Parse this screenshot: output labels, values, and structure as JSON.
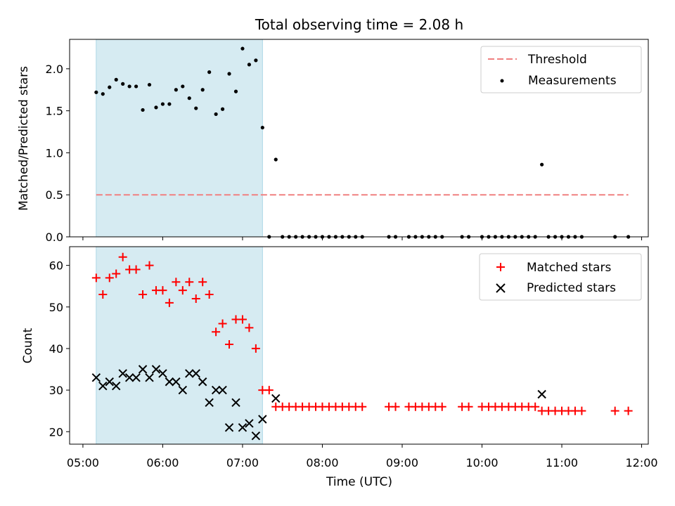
{
  "chart_data": {
    "title": "Total observing time = 2.08 h",
    "type": "scatter",
    "x_axis": {
      "label": "Time (UTC)",
      "range": [
        "04:50",
        "12:05"
      ],
      "ticks": [
        "05:00",
        "06:00",
        "07:00",
        "08:00",
        "09:00",
        "10:00",
        "11:00",
        "12:00"
      ]
    },
    "shaded_interval": {
      "start": "05:10",
      "end": "07:15",
      "color": "#add8e6"
    },
    "panels": [
      {
        "ylabel": "Matched/Predicted stars",
        "ylim": [
          0,
          2.35
        ],
        "yticks": [
          "0.0",
          "0.5",
          "1.0",
          "1.5",
          "2.0"
        ],
        "legend_position": "top-right",
        "threshold": {
          "name": "Threshold",
          "value": 0.5,
          "x_start": "05:10",
          "x_end": "11:50",
          "color": "#f08080"
        },
        "series": [
          {
            "name": "Measurements",
            "color": "#000000",
            "marker": "dot",
            "points": [
              [
                "05:10",
                1.72
              ],
              [
                "05:15",
                1.7
              ],
              [
                "05:20",
                1.78
              ],
              [
                "05:25",
                1.87
              ],
              [
                "05:30",
                1.82
              ],
              [
                "05:35",
                1.79
              ],
              [
                "05:40",
                1.79
              ],
              [
                "05:45",
                1.51
              ],
              [
                "05:50",
                1.81
              ],
              [
                "05:55",
                1.54
              ],
              [
                "06:00",
                1.58
              ],
              [
                "06:05",
                1.58
              ],
              [
                "06:10",
                1.75
              ],
              [
                "06:15",
                1.79
              ],
              [
                "06:20",
                1.65
              ],
              [
                "06:25",
                1.53
              ],
              [
                "06:30",
                1.75
              ],
              [
                "06:35",
                1.96
              ],
              [
                "06:40",
                1.46
              ],
              [
                "06:45",
                1.52
              ],
              [
                "06:50",
                1.94
              ],
              [
                "06:55",
                1.73
              ],
              [
                "07:00",
                2.24
              ],
              [
                "07:05",
                2.05
              ],
              [
                "07:10",
                2.1
              ],
              [
                "07:15",
                1.3
              ],
              [
                "07:20",
                0.0
              ],
              [
                "07:25",
                0.92
              ],
              [
                "07:30",
                0.0
              ],
              [
                "07:35",
                0.0
              ],
              [
                "07:40",
                0.0
              ],
              [
                "07:45",
                0.0
              ],
              [
                "07:50",
                0.0
              ],
              [
                "07:55",
                0.0
              ],
              [
                "08:00",
                0.0
              ],
              [
                "08:05",
                0.0
              ],
              [
                "08:10",
                0.0
              ],
              [
                "08:15",
                0.0
              ],
              [
                "08:20",
                0.0
              ],
              [
                "08:25",
                0.0
              ],
              [
                "08:30",
                0.0
              ],
              [
                "08:50",
                0.0
              ],
              [
                "08:55",
                0.0
              ],
              [
                "09:05",
                0.0
              ],
              [
                "09:10",
                0.0
              ],
              [
                "09:15",
                0.0
              ],
              [
                "09:20",
                0.0
              ],
              [
                "09:25",
                0.0
              ],
              [
                "09:30",
                0.0
              ],
              [
                "09:45",
                0.0
              ],
              [
                "09:50",
                0.0
              ],
              [
                "10:00",
                0.0
              ],
              [
                "10:05",
                0.0
              ],
              [
                "10:10",
                0.0
              ],
              [
                "10:15",
                0.0
              ],
              [
                "10:20",
                0.0
              ],
              [
                "10:25",
                0.0
              ],
              [
                "10:30",
                0.0
              ],
              [
                "10:35",
                0.0
              ],
              [
                "10:40",
                0.0
              ],
              [
                "10:45",
                0.86
              ],
              [
                "10:50",
                0.0
              ],
              [
                "10:55",
                0.0
              ],
              [
                "11:00",
                0.0
              ],
              [
                "11:05",
                0.0
              ],
              [
                "11:10",
                0.0
              ],
              [
                "11:15",
                0.0
              ],
              [
                "11:40",
                0.0
              ],
              [
                "11:50",
                0.0
              ]
            ]
          }
        ]
      },
      {
        "ylabel": "Count",
        "ylim": [
          17,
          64.5
        ],
        "yticks": [
          "20",
          "30",
          "40",
          "50",
          "60"
        ],
        "legend_position": "top-right",
        "series": [
          {
            "name": "Matched stars",
            "color": "#ff0000",
            "marker": "plus",
            "points": [
              [
                "05:10",
                57
              ],
              [
                "05:15",
                53
              ],
              [
                "05:20",
                57
              ],
              [
                "05:25",
                58
              ],
              [
                "05:30",
                62
              ],
              [
                "05:35",
                59
              ],
              [
                "05:40",
                59
              ],
              [
                "05:45",
                53
              ],
              [
                "05:50",
                60
              ],
              [
                "05:55",
                54
              ],
              [
                "06:00",
                54
              ],
              [
                "06:05",
                51
              ],
              [
                "06:10",
                56
              ],
              [
                "06:15",
                54
              ],
              [
                "06:20",
                56
              ],
              [
                "06:25",
                52
              ],
              [
                "06:30",
                56
              ],
              [
                "06:35",
                53
              ],
              [
                "06:40",
                44
              ],
              [
                "06:45",
                46
              ],
              [
                "06:50",
                41
              ],
              [
                "06:55",
                47
              ],
              [
                "07:00",
                47
              ],
              [
                "07:05",
                45
              ],
              [
                "07:10",
                40
              ],
              [
                "07:15",
                30
              ],
              [
                "07:20",
                30
              ],
              [
                "07:25",
                26
              ],
              [
                "07:30",
                26
              ],
              [
                "07:35",
                26
              ],
              [
                "07:40",
                26
              ],
              [
                "07:45",
                26
              ],
              [
                "07:50",
                26
              ],
              [
                "07:55",
                26
              ],
              [
                "08:00",
                26
              ],
              [
                "08:05",
                26
              ],
              [
                "08:10",
                26
              ],
              [
                "08:15",
                26
              ],
              [
                "08:20",
                26
              ],
              [
                "08:25",
                26
              ],
              [
                "08:30",
                26
              ],
              [
                "08:50",
                26
              ],
              [
                "08:55",
                26
              ],
              [
                "09:05",
                26
              ],
              [
                "09:10",
                26
              ],
              [
                "09:15",
                26
              ],
              [
                "09:20",
                26
              ],
              [
                "09:25",
                26
              ],
              [
                "09:30",
                26
              ],
              [
                "09:45",
                26
              ],
              [
                "09:50",
                26
              ],
              [
                "10:00",
                26
              ],
              [
                "10:05",
                26
              ],
              [
                "10:10",
                26
              ],
              [
                "10:15",
                26
              ],
              [
                "10:20",
                26
              ],
              [
                "10:25",
                26
              ],
              [
                "10:30",
                26
              ],
              [
                "10:35",
                26
              ],
              [
                "10:40",
                26
              ],
              [
                "10:45",
                25
              ],
              [
                "10:50",
                25
              ],
              [
                "10:55",
                25
              ],
              [
                "11:00",
                25
              ],
              [
                "11:05",
                25
              ],
              [
                "11:10",
                25
              ],
              [
                "11:15",
                25
              ],
              [
                "11:40",
                25
              ],
              [
                "11:50",
                25
              ]
            ]
          },
          {
            "name": "Predicted stars",
            "color": "#000000",
            "marker": "x",
            "points": [
              [
                "05:10",
                33
              ],
              [
                "05:15",
                31
              ],
              [
                "05:20",
                32
              ],
              [
                "05:25",
                31
              ],
              [
                "05:30",
                34
              ],
              [
                "05:35",
                33
              ],
              [
                "05:40",
                33
              ],
              [
                "05:45",
                35
              ],
              [
                "05:50",
                33
              ],
              [
                "05:55",
                35
              ],
              [
                "06:00",
                34
              ],
              [
                "06:05",
                32
              ],
              [
                "06:10",
                32
              ],
              [
                "06:15",
                30
              ],
              [
                "06:20",
                34
              ],
              [
                "06:25",
                34
              ],
              [
                "06:30",
                32
              ],
              [
                "06:35",
                27
              ],
              [
                "06:40",
                30
              ],
              [
                "06:45",
                30
              ],
              [
                "06:50",
                21
              ],
              [
                "06:55",
                27
              ],
              [
                "07:00",
                21
              ],
              [
                "07:05",
                22
              ],
              [
                "07:10",
                19
              ],
              [
                "07:15",
                23
              ],
              [
                "07:25",
                28
              ],
              [
                "10:45",
                29
              ]
            ]
          }
        ]
      }
    ]
  }
}
